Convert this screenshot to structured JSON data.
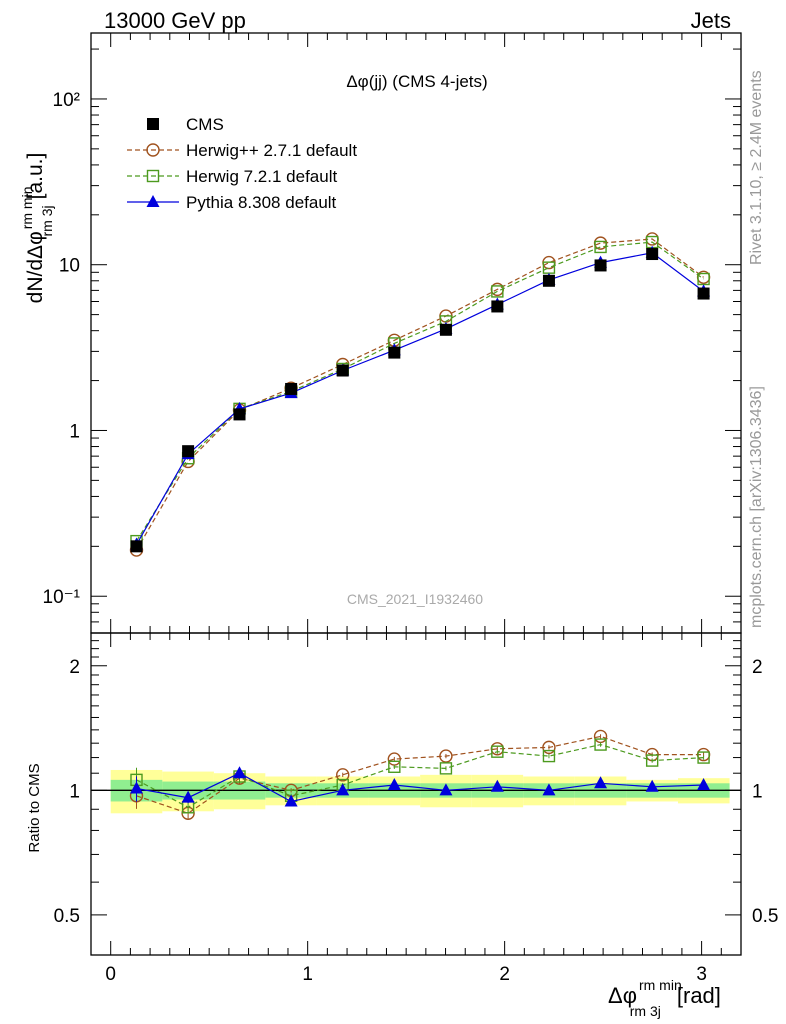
{
  "header": {
    "energy": "13000 GeV pp",
    "process": "Jets"
  },
  "sidebar": {
    "rivet": "Rivet 3.1.10, ≥ 2.4M events",
    "source": "mcplots.cern.ch [arXiv:1306.3436]"
  },
  "watermark": "CMS_2021_I1932460",
  "axes": {
    "ylabel_main": "dN/dΔφ",
    "ylabel_main_sup": "rm min",
    "ylabel_main_sub": "rm 3j",
    "ylabel_main_unit": "[a.u.]",
    "ylabel_ratio": "Ratio to CMS",
    "xlabel": "Δφ",
    "xlabel_sup": "rm min",
    "xlabel_sub": "rm 3j",
    "xlabel_unit": "[rad]"
  },
  "colors": {
    "data": "#000000",
    "herwigpp": "#a0521e",
    "herwig7": "#4c9a1e",
    "pythia": "#0000dd",
    "band_inner": "#90ee90",
    "band_outer": "#ffff99"
  },
  "chart_data": {
    "type": "line",
    "title": "Δφ(jj) (CMS 4-jets)",
    "x": [
      0.131,
      0.393,
      0.654,
      0.916,
      1.178,
      1.44,
      1.702,
      1.963,
      2.225,
      2.487,
      2.749,
      3.01
    ],
    "xlim": [
      -0.1,
      3.2
    ],
    "xticks": [
      "0",
      "1",
      "2",
      "3"
    ],
    "main": {
      "yscale": "log",
      "ylim": [
        0.06,
        250
      ],
      "yticks": [
        "10⁻¹",
        "1",
        "10",
        "10²"
      ]
    },
    "ratio": {
      "ylim": [
        0.4,
        2.4
      ],
      "yticks": [
        "0.5",
        "1",
        "2"
      ]
    },
    "legend": {
      "placement": "top-left",
      "entries": [
        "CMS",
        "Herwig++ 2.7.1 default",
        "Herwig 7.2.1 default",
        "Pythia 8.308 default"
      ]
    },
    "series": [
      {
        "name": "CMS",
        "style": "data",
        "values": [
          0.2,
          0.75,
          1.25,
          1.78,
          2.3,
          2.95,
          4.05,
          5.6,
          8.0,
          9.9,
          11.6,
          6.7
        ]
      },
      {
        "name": "Herwig++ 2.7.1 default",
        "style": "herwigpp",
        "values": [
          0.19,
          0.65,
          1.33,
          1.8,
          2.5,
          3.5,
          4.9,
          7.1,
          10.3,
          13.5,
          14.3,
          8.4
        ],
        "ratio": [
          0.97,
          0.88,
          1.07,
          1.0,
          1.09,
          1.19,
          1.21,
          1.26,
          1.27,
          1.35,
          1.22,
          1.22
        ]
      },
      {
        "name": "Herwig 7.2.1 default",
        "style": "herwig7",
        "values": [
          0.215,
          0.68,
          1.35,
          1.72,
          2.35,
          3.35,
          4.55,
          6.9,
          9.6,
          12.8,
          13.7,
          8.2
        ],
        "ratio": [
          1.06,
          0.91,
          1.08,
          0.97,
          1.03,
          1.14,
          1.13,
          1.24,
          1.21,
          1.29,
          1.18,
          1.2
        ]
      },
      {
        "name": "Pythia 8.308 default",
        "style": "pythia",
        "values": [
          0.205,
          0.72,
          1.35,
          1.68,
          2.3,
          3.05,
          4.1,
          5.75,
          8.1,
          10.3,
          11.8,
          6.9
        ],
        "ratio": [
          1.01,
          0.96,
          1.1,
          0.94,
          1.0,
          1.03,
          1.0,
          1.02,
          1.0,
          1.04,
          1.02,
          1.03
        ]
      }
    ],
    "ratio_band": {
      "x_edges": [
        0.0,
        0.262,
        0.524,
        0.785,
        1.047,
        1.309,
        1.571,
        1.833,
        2.094,
        2.356,
        2.618,
        2.88,
        3.142
      ],
      "inner": [
        0.06,
        0.05,
        0.05,
        0.04,
        0.04,
        0.04,
        0.04,
        0.04,
        0.04,
        0.04,
        0.04,
        0.04
      ],
      "outer": [
        0.12,
        0.11,
        0.1,
        0.08,
        0.08,
        0.08,
        0.09,
        0.09,
        0.08,
        0.08,
        0.06,
        0.07
      ]
    }
  }
}
